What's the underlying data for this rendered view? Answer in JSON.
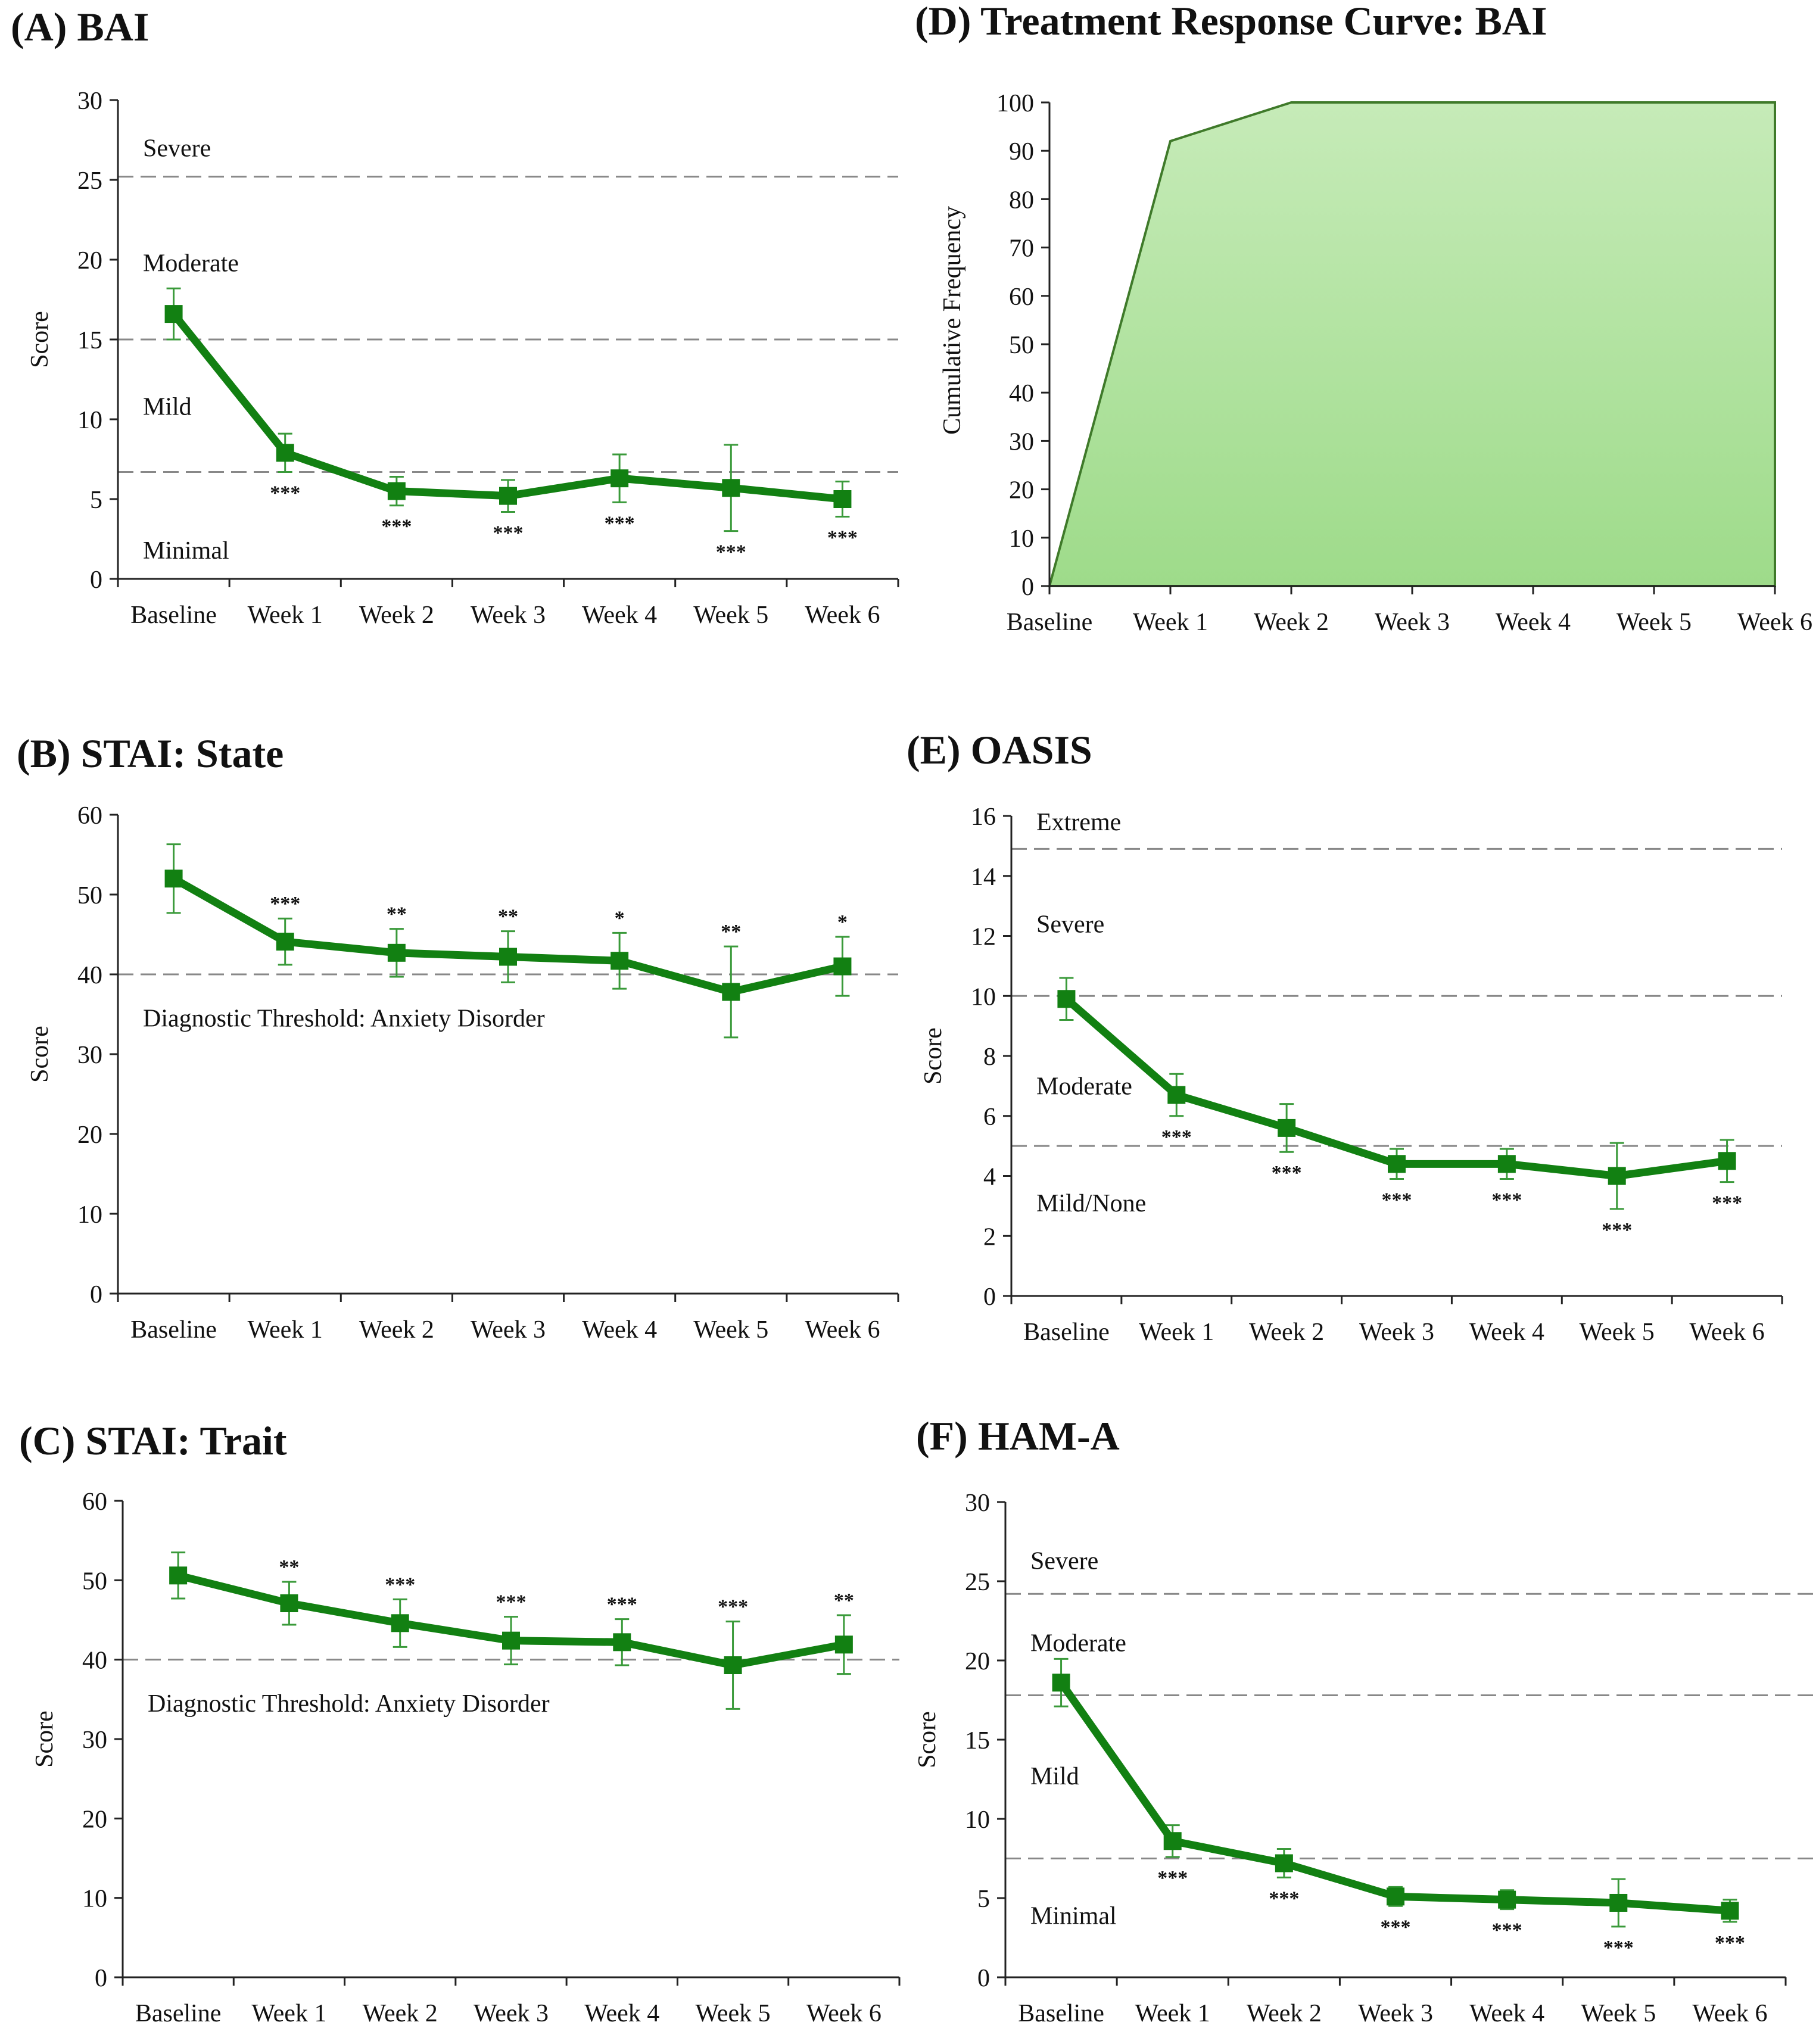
{
  "colors": {
    "series": "#128012",
    "area_top": "#c6ebb8",
    "area_bottom": "#9edb8a",
    "reference": "#888888"
  },
  "chart_data": [
    {
      "id": "A",
      "type": "line",
      "title": "(A) BAI",
      "categories": [
        "Baseline",
        "Week 1",
        "Week 2",
        "Week 3",
        "Week 4",
        "Week 5",
        "Week 6"
      ],
      "ylabel": "Score",
      "xlabel": "",
      "ylim": [
        0,
        30
      ],
      "yticks": [
        0,
        5,
        10,
        15,
        20,
        25,
        30
      ],
      "values": [
        16.6,
        7.9,
        5.5,
        5.2,
        6.3,
        5.7,
        5.0
      ],
      "errors": [
        1.6,
        1.2,
        0.9,
        1.0,
        1.5,
        2.7,
        1.1
      ],
      "significance": [
        "",
        "***",
        "***",
        "***",
        "***",
        "***",
        "***"
      ],
      "reference_lines": [
        25.2,
        15.0,
        6.7
      ],
      "band_labels": [
        {
          "text": "Severe",
          "y": 27
        },
        {
          "text": "Moderate",
          "y": 19.8
        },
        {
          "text": "Mild",
          "y": 10.8
        },
        {
          "text": "Minimal",
          "y": 1.8
        }
      ]
    },
    {
      "id": "B",
      "type": "line",
      "title": "(B) STAI: State",
      "categories": [
        "Baseline",
        "Week 1",
        "Week 2",
        "Week 3",
        "Week 4",
        "Week 5",
        "Week 6"
      ],
      "ylabel": "Score",
      "xlabel": "",
      "ylim": [
        0,
        60
      ],
      "yticks": [
        0,
        10,
        20,
        30,
        40,
        50,
        60
      ],
      "values": [
        52.0,
        44.1,
        42.7,
        42.2,
        41.7,
        37.8,
        41.0
      ],
      "errors": [
        4.3,
        2.9,
        3.0,
        3.2,
        3.5,
        5.7,
        3.7
      ],
      "significance": [
        "",
        "***",
        "**",
        "**",
        "*",
        "**",
        "*"
      ],
      "reference_lines": [
        40.0
      ],
      "band_labels": [
        {
          "text": "Diagnostic Threshold: Anxiety Disorder",
          "y": 34.5
        }
      ]
    },
    {
      "id": "C",
      "type": "line",
      "title": "(C) STAI: Trait",
      "categories": [
        "Baseline",
        "Week 1",
        "Week 2",
        "Week 3",
        "Week 4",
        "Week 5",
        "Week 6"
      ],
      "ylabel": "Score",
      "xlabel": "",
      "ylim": [
        0,
        60
      ],
      "yticks": [
        0,
        10,
        20,
        30,
        40,
        50,
        60
      ],
      "values": [
        50.6,
        47.1,
        44.6,
        42.4,
        42.2,
        39.3,
        41.9
      ],
      "errors": [
        2.9,
        2.7,
        3.0,
        3.0,
        2.9,
        5.5,
        3.7
      ],
      "significance": [
        "",
        "**",
        "***",
        "***",
        "***",
        "***",
        "**"
      ],
      "reference_lines": [
        40.0
      ],
      "band_labels": [
        {
          "text": "Diagnostic Threshold: Anxiety Disorder",
          "y": 34.5
        }
      ]
    },
    {
      "id": "D",
      "type": "area",
      "title": "(D) Treatment Response Curve: BAI",
      "categories": [
        "Baseline",
        "Week 1",
        "Week 2",
        "Week 3",
        "Week 4",
        "Week 5",
        "Week 6"
      ],
      "ylabel": "Cumulative Frequency",
      "xlabel": "",
      "ylim": [
        0,
        100
      ],
      "yticks": [
        0,
        10,
        20,
        30,
        40,
        50,
        60,
        70,
        80,
        90,
        100
      ],
      "values": [
        0,
        92,
        100,
        100,
        100,
        100,
        100
      ]
    },
    {
      "id": "E",
      "type": "line",
      "title": "(E) OASIS",
      "categories": [
        "Baseline",
        "Week 1",
        "Week 2",
        "Week 3",
        "Week 4",
        "Week 5",
        "Week 6"
      ],
      "ylabel": "Score",
      "xlabel": "",
      "ylim": [
        0,
        16
      ],
      "yticks": [
        0,
        2,
        4,
        6,
        8,
        10,
        12,
        14,
        16
      ],
      "values": [
        9.9,
        6.7,
        5.6,
        4.4,
        4.4,
        4.0,
        4.5
      ],
      "errors": [
        0.7,
        0.7,
        0.8,
        0.5,
        0.5,
        1.1,
        0.7
      ],
      "significance": [
        "",
        "***",
        "***",
        "***",
        "***",
        "***",
        "***"
      ],
      "reference_lines": [
        14.9,
        10.0,
        5.0
      ],
      "band_labels": [
        {
          "text": "Extreme",
          "y": 15.8
        },
        {
          "text": "Severe",
          "y": 12.4
        },
        {
          "text": "Moderate",
          "y": 7.0
        },
        {
          "text": "Mild/None",
          "y": 3.1
        }
      ]
    },
    {
      "id": "F",
      "type": "line",
      "title": "(F) HAM-A",
      "categories": [
        "Baseline",
        "Week 1",
        "Week 2",
        "Week 3",
        "Week 4",
        "Week 5",
        "Week 6"
      ],
      "ylabel": "Score",
      "xlabel": "",
      "ylim": [
        0,
        30
      ],
      "yticks": [
        0,
        5,
        10,
        15,
        20,
        25,
        30
      ],
      "values": [
        18.6,
        8.6,
        7.2,
        5.1,
        4.9,
        4.7,
        4.2
      ],
      "errors": [
        1.5,
        1.0,
        0.9,
        0.6,
        0.6,
        1.5,
        0.7
      ],
      "significance": [
        "",
        "***",
        "***",
        "***",
        "***",
        "***",
        "***"
      ],
      "reference_lines": [
        24.2,
        17.8,
        7.5
      ],
      "band_labels": [
        {
          "text": "Severe",
          "y": 26.3
        },
        {
          "text": "Moderate",
          "y": 21.1
        },
        {
          "text": "Mild",
          "y": 12.7
        },
        {
          "text": "Minimal",
          "y": 3.9
        }
      ]
    }
  ]
}
